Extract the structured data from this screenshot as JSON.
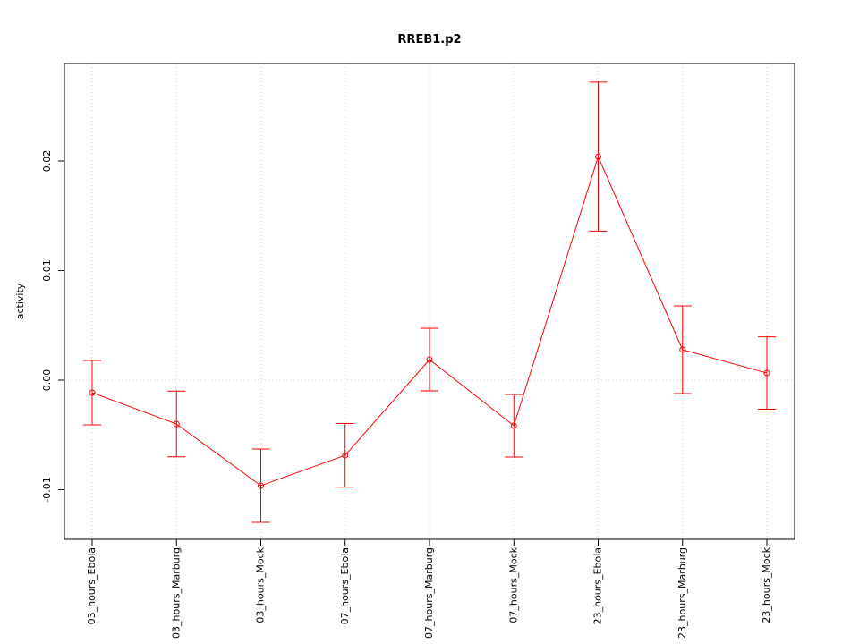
{
  "chart_data": {
    "type": "line",
    "title": "RREB1.p2",
    "ylabel": "activity",
    "categories": [
      "03_hours_Ebola",
      "03_hours_Marburg",
      "03_hours_Mock",
      "07_hours_Ebola",
      "07_hours_Marburg",
      "07_hours_Mock",
      "23_hours_Ebola",
      "23_hours_Marburg",
      "23_hours_Mock"
    ],
    "values": [
      -0.00114,
      -0.004,
      -0.00963,
      -0.00686,
      0.00188,
      -0.00416,
      0.0204,
      0.00278,
      0.00065
    ],
    "errors": [
      0.00294,
      0.003,
      0.00335,
      0.0029,
      0.00286,
      0.00286,
      0.0068,
      0.004,
      0.0033
    ],
    "color": "#ff0000",
    "ylim": [
      -0.01453,
      0.0289
    ],
    "yticks": [
      {
        "value": -0.01,
        "label": "-0.01"
      },
      {
        "value": 0,
        "label": "0.00"
      },
      {
        "value": 0.01,
        "label": "0.01"
      },
      {
        "value": 0.02,
        "label": "0.02"
      }
    ],
    "reference_line": 0,
    "grid": true
  }
}
